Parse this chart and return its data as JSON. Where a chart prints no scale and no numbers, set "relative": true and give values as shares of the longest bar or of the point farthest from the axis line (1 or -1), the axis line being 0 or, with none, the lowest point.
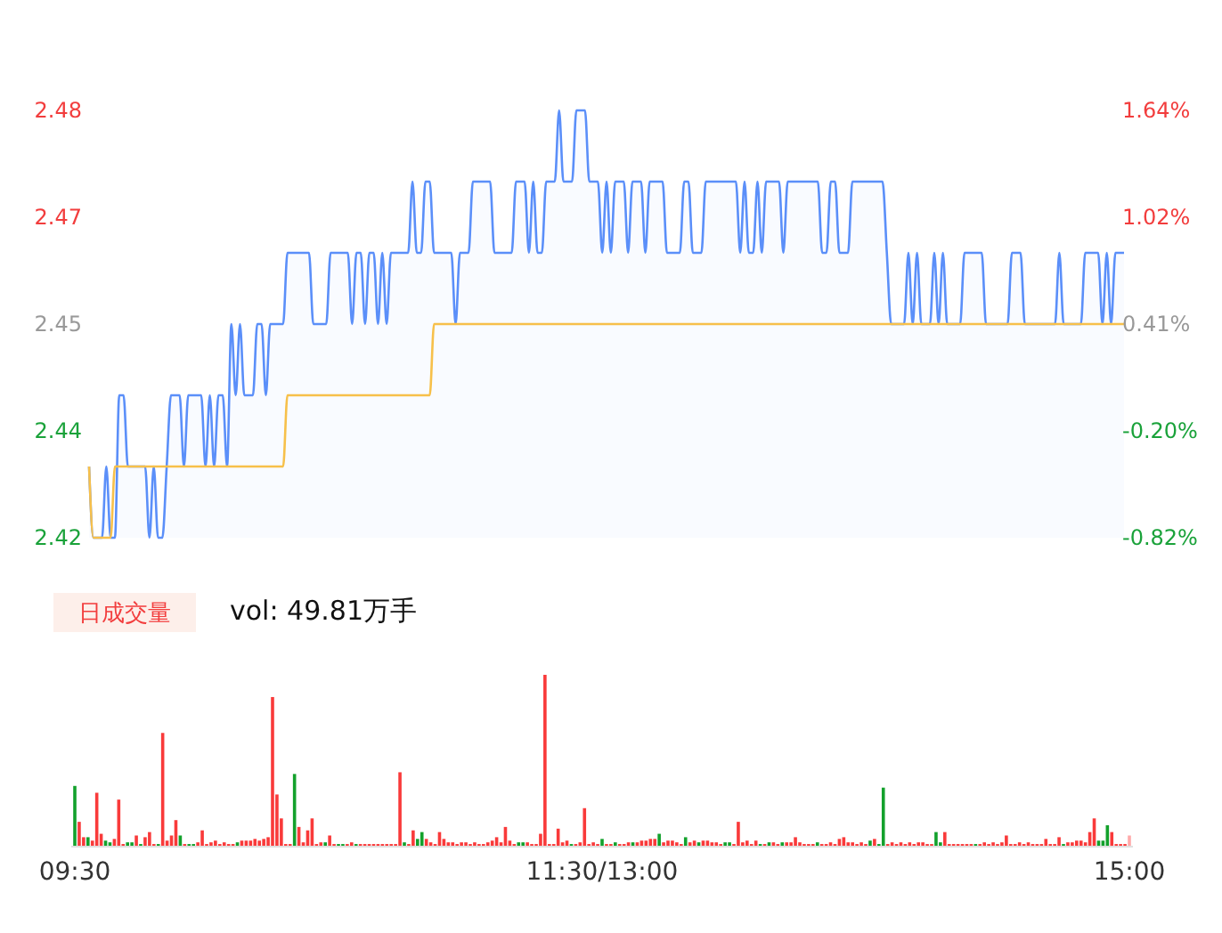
{
  "chart_data": [
    {
      "type": "line",
      "categories": [
        null,
        null,
        null,
        null,
        null,
        null,
        null,
        null,
        null,
        null,
        null,
        null,
        null,
        null,
        null,
        null,
        null,
        null,
        null,
        null,
        null,
        null,
        null,
        null,
        null,
        null,
        null,
        null,
        null,
        null,
        null,
        null,
        null,
        null,
        null,
        null,
        null,
        null,
        null,
        null,
        null,
        null,
        null,
        null,
        null,
        null,
        null,
        null,
        null,
        null,
        null,
        null,
        null,
        null,
        null,
        null,
        null,
        null,
        null,
        null,
        null,
        null,
        null,
        null,
        null,
        null,
        null,
        null,
        null,
        null,
        null,
        null,
        null,
        null,
        null,
        null,
        null,
        null,
        null,
        null,
        null,
        null,
        null,
        null,
        null,
        null,
        null,
        null,
        null,
        null,
        null,
        null,
        null,
        null,
        null,
        null,
        null,
        null,
        null,
        null,
        null,
        null,
        null,
        null,
        null,
        null,
        null,
        null,
        null,
        null,
        null,
        null,
        null,
        null,
        null,
        null,
        null,
        null,
        null,
        null,
        null,
        null,
        null,
        null,
        null,
        null,
        null,
        null,
        null,
        null,
        null,
        null,
        null,
        null,
        null,
        null,
        null,
        null,
        null,
        null,
        null,
        null,
        null,
        null,
        null,
        null,
        null,
        null,
        null,
        null,
        null,
        null,
        null,
        null,
        null,
        null,
        null,
        null,
        null,
        null,
        null,
        null,
        null,
        null,
        null,
        null,
        null,
        null,
        null,
        null,
        null,
        null,
        null,
        null,
        null,
        null,
        null,
        null,
        null,
        null,
        null,
        null,
        null,
        null,
        null,
        null,
        null,
        null,
        null,
        null,
        null,
        null,
        null,
        null,
        null,
        null,
        null,
        null,
        null,
        null,
        null,
        null,
        null,
        null,
        null,
        null,
        null,
        null,
        null,
        null,
        null,
        null,
        null,
        null,
        null,
        null,
        null,
        null,
        null,
        null,
        null,
        null,
        null,
        null,
        null,
        null,
        null,
        null,
        null,
        null,
        null,
        null,
        null,
        null,
        null,
        null,
        null,
        null,
        null,
        null,
        null
      ],
      "ylim": [
        2.42,
        2.48
      ],
      "yticks": [
        2.42,
        {
          "value": 2.435,
          "label": "2.44"
        },
        2.45,
        {
          "value": 2.465,
          "label": "2.47"
        },
        2.48
      ],
      "y2lim": [
        -0.82,
        1.64
      ],
      "y2ticks": [
        {
          "value": -0.82,
          "label": "-0.82%"
        },
        {
          "value": -0.205,
          "label": "-0.20%"
        },
        {
          "value": 0.41,
          "label": "0.41%"
        },
        {
          "value": 1.025,
          "label": "1.02%"
        },
        {
          "value": 1.64,
          "label": "1.64%"
        }
      ],
      "tick_labels": "y",
      "series": [
        {
          "type": "area",
          "color": "#5b8ff9",
          "values": [
            2.43,
            2.42,
            2.42,
            2.42,
            2.43,
            2.42,
            2.42,
            2.44,
            2.44,
            2.43,
            2.43,
            2.43,
            2.43,
            2.43,
            2.42,
            2.43,
            2.42,
            2.42,
            2.43,
            2.44,
            2.44,
            2.44,
            2.43,
            2.44,
            2.44,
            2.44,
            2.44,
            2.43,
            2.44,
            2.43,
            2.44,
            2.44,
            2.43,
            2.45,
            2.44,
            2.45,
            2.44,
            2.44,
            2.44,
            2.45,
            2.45,
            2.44,
            2.45,
            2.45,
            2.45,
            2.45,
            2.46,
            2.46,
            2.46,
            2.46,
            2.46,
            2.46,
            2.45,
            2.45,
            2.45,
            2.45,
            2.46,
            2.46,
            2.46,
            2.46,
            2.46,
            2.45,
            2.46,
            2.46,
            2.45,
            2.46,
            2.46,
            2.45,
            2.46,
            2.45,
            2.46,
            2.46,
            2.46,
            2.46,
            2.46,
            2.47,
            2.46,
            2.46,
            2.47,
            2.47,
            2.46,
            2.46,
            2.46,
            2.46,
            2.46,
            2.45,
            2.46,
            2.46,
            2.46,
            2.47,
            2.47,
            2.47,
            2.47,
            2.47,
            2.46,
            2.46,
            2.46,
            2.46,
            2.46,
            2.47,
            2.47,
            2.47,
            2.46,
            2.47,
            2.46,
            2.46,
            2.47,
            2.47,
            2.47,
            2.48,
            2.47,
            2.47,
            2.47,
            2.48,
            2.48,
            2.48,
            2.47,
            2.47,
            2.47,
            2.46,
            2.47,
            2.46,
            2.47,
            2.47,
            2.47,
            2.46,
            2.47,
            2.47,
            2.47,
            2.46,
            2.47,
            2.47,
            2.47,
            2.47,
            2.46,
            2.46,
            2.46,
            2.46,
            2.47,
            2.47,
            2.46,
            2.46,
            2.46,
            2.47,
            2.47,
            2.47,
            2.47,
            2.47,
            2.47,
            2.47,
            2.47,
            2.46,
            2.47,
            2.46,
            2.46,
            2.47,
            2.46,
            2.47,
            2.47,
            2.47,
            2.47,
            2.46,
            2.47,
            2.47,
            2.47,
            2.47,
            2.47,
            2.47,
            2.47,
            2.47,
            2.46,
            2.46,
            2.47,
            2.47,
            2.46,
            2.46,
            2.46,
            2.47,
            2.47,
            2.47,
            2.47,
            2.47,
            2.47,
            2.47,
            2.47,
            2.46,
            2.45,
            2.45,
            2.45,
            2.45,
            2.46,
            2.45,
            2.46,
            2.45,
            2.45,
            2.45,
            2.46,
            2.45,
            2.46,
            2.45,
            2.45,
            2.45,
            2.45,
            2.46,
            2.46,
            2.46,
            2.46,
            2.46,
            2.45,
            2.45,
            2.45,
            2.45,
            2.45,
            2.45,
            2.46,
            2.46,
            2.46,
            2.45,
            2.45,
            2.45,
            2.45,
            2.45,
            2.45,
            2.45,
            2.45,
            2.46,
            2.45,
            2.45,
            2.45,
            2.45,
            2.45,
            2.46,
            2.46,
            2.46,
            2.46,
            2.45,
            2.46,
            2.45,
            2.46,
            2.46,
            2.46
          ]
        },
        {
          "type": "line",
          "color": "#f7c04a",
          "values": [
            2.43,
            2.42,
            2.42,
            2.42,
            2.42,
            2.42,
            2.43,
            2.43,
            2.43,
            2.43,
            2.43,
            2.43,
            2.43,
            2.43,
            2.43,
            2.43,
            2.43,
            2.43,
            2.43,
            2.43,
            2.43,
            2.43,
            2.43,
            2.43,
            2.43,
            2.43,
            2.43,
            2.43,
            2.43,
            2.43,
            2.43,
            2.43,
            2.43,
            2.43,
            2.43,
            2.43,
            2.43,
            2.43,
            2.43,
            2.43,
            2.43,
            2.43,
            2.43,
            2.43,
            2.43,
            2.43,
            2.44,
            2.44,
            2.44,
            2.44,
            2.44,
            2.44,
            2.44,
            2.44,
            2.44,
            2.44,
            2.44,
            2.44,
            2.44,
            2.44,
            2.44,
            2.44,
            2.44,
            2.44,
            2.44,
            2.44,
            2.44,
            2.44,
            2.44,
            2.44,
            2.44,
            2.44,
            2.44,
            2.44,
            2.44,
            2.44,
            2.44,
            2.44,
            2.44,
            2.44,
            2.45,
            2.45,
            2.45,
            2.45,
            2.45,
            2.45,
            2.45,
            2.45,
            2.45,
            2.45,
            2.45,
            2.45,
            2.45,
            2.45,
            2.45,
            2.45,
            2.45,
            2.45,
            2.45,
            2.45,
            2.45,
            2.45,
            2.45,
            2.45,
            2.45,
            2.45,
            2.45,
            2.45,
            2.45,
            2.45,
            2.45,
            2.45,
            2.45,
            2.45,
            2.45,
            2.45,
            2.45,
            2.45,
            2.45,
            2.45,
            2.45,
            2.45,
            2.45,
            2.45,
            2.45,
            2.45,
            2.45,
            2.45,
            2.45,
            2.45,
            2.45,
            2.45,
            2.45,
            2.45,
            2.45,
            2.45,
            2.45,
            2.45,
            2.45,
            2.45,
            2.45,
            2.45,
            2.45,
            2.45,
            2.45,
            2.45,
            2.45,
            2.45,
            2.45,
            2.45,
            2.45,
            2.45,
            2.45,
            2.45,
            2.45,
            2.45,
            2.45,
            2.45,
            2.45,
            2.45,
            2.45,
            2.45,
            2.45,
            2.45,
            2.45,
            2.45,
            2.45,
            2.45,
            2.45,
            2.45,
            2.45,
            2.45,
            2.45,
            2.45,
            2.45,
            2.45,
            2.45,
            2.45,
            2.45,
            2.45,
            2.45,
            2.45,
            2.45,
            2.45,
            2.45,
            2.45,
            2.45,
            2.45,
            2.45,
            2.45,
            2.45,
            2.45,
            2.45,
            2.45,
            2.45,
            2.45,
            2.45,
            2.45,
            2.45,
            2.45,
            2.45,
            2.45,
            2.45,
            2.45,
            2.45,
            2.45,
            2.45,
            2.45,
            2.45,
            2.45,
            2.45,
            2.45,
            2.45,
            2.45,
            2.45,
            2.45,
            2.45,
            2.45,
            2.45,
            2.45,
            2.45,
            2.45,
            2.45,
            2.45,
            2.45,
            2.45,
            2.45,
            2.45,
            2.45,
            2.45,
            2.45,
            2.45,
            2.45,
            2.45,
            2.45,
            2.45,
            2.45,
            2.45,
            2.45,
            2.45,
            2.45
          ]
        }
      ]
    },
    {
      "type": "bar",
      "title": "日成交量",
      "subtitle": "vol: 49.81万手",
      "relative": true,
      "categories": [
        "09:30",
        null,
        null,
        null,
        null,
        null,
        null,
        null,
        null,
        null,
        null,
        null,
        null,
        null,
        null,
        null,
        null,
        null,
        null,
        null,
        null,
        null,
        null,
        null,
        null,
        null,
        null,
        null,
        null,
        null,
        null,
        null,
        null,
        null,
        null,
        null,
        null,
        null,
        null,
        null,
        null,
        null,
        null,
        null,
        null,
        null,
        null,
        null,
        null,
        null,
        null,
        null,
        null,
        null,
        null,
        null,
        null,
        null,
        null,
        null,
        null,
        null,
        null,
        null,
        null,
        null,
        null,
        null,
        null,
        null,
        null,
        null,
        null,
        null,
        null,
        null,
        null,
        null,
        null,
        null,
        null,
        null,
        null,
        null,
        null,
        null,
        null,
        null,
        null,
        null,
        null,
        null,
        null,
        null,
        null,
        null,
        null,
        null,
        null,
        null,
        null,
        null,
        null,
        null,
        null,
        null,
        null,
        null,
        null,
        null,
        null,
        null,
        null,
        null,
        null,
        null,
        null,
        null,
        null,
        null,
        "11:30/13:00",
        null,
        null,
        null,
        null,
        null,
        null,
        null,
        null,
        null,
        null,
        null,
        null,
        null,
        null,
        null,
        null,
        null,
        null,
        null,
        null,
        null,
        null,
        null,
        null,
        null,
        null,
        null,
        null,
        null,
        null,
        null,
        null,
        null,
        null,
        null,
        null,
        null,
        null,
        null,
        null,
        null,
        null,
        null,
        null,
        null,
        null,
        null,
        null,
        null,
        null,
        null,
        null,
        null,
        null,
        null,
        null,
        null,
        null,
        null,
        null,
        null,
        null,
        null,
        null,
        null,
        null,
        null,
        null,
        null,
        null,
        null,
        null,
        null,
        null,
        null,
        null,
        null,
        null,
        null,
        null,
        null,
        null,
        null,
        null,
        null,
        null,
        null,
        null,
        null,
        null,
        null,
        null,
        null,
        null,
        null,
        null,
        null,
        null,
        null,
        null,
        null,
        null,
        null,
        null,
        null,
        null,
        null,
        null,
        null,
        null,
        null,
        null,
        null,
        null,
        null,
        null,
        null,
        null,
        null,
        "15:00"
      ],
      "values": [
        0.35,
        0.14,
        0.05,
        0.05,
        0.03,
        0.31,
        0.07,
        0.03,
        0.02,
        0.04,
        0.27,
        0.01,
        0.02,
        0.02,
        0.06,
        0.01,
        0.05,
        0.08,
        0.01,
        0.01,
        0.66,
        0.03,
        0.06,
        0.15,
        0.06,
        0.01,
        0.01,
        0.01,
        0.02,
        0.09,
        0.01,
        0.02,
        0.03,
        0.01,
        0.02,
        0.01,
        0.01,
        0.02,
        0.03,
        0.03,
        0.03,
        0.04,
        0.03,
        0.04,
        0.05,
        0.87,
        0.3,
        0.16,
        0.01,
        0.01,
        0.42,
        0.11,
        0.02,
        0.09,
        0.16,
        0.01,
        0.02,
        0.02,
        0.06,
        0.01,
        0.01,
        0.01,
        0.01,
        0.02,
        0.01,
        0.01,
        0.01,
        0.01,
        0.01,
        0.01,
        0.01,
        0.01,
        0.01,
        0.01,
        0.43,
        0.02,
        0.01,
        0.09,
        0.04,
        0.08,
        0.04,
        0.02,
        0.01,
        0.08,
        0.04,
        0.02,
        0.02,
        0.01,
        0.02,
        0.02,
        0.01,
        0.02,
        0.01,
        0.01,
        0.02,
        0.03,
        0.05,
        0.02,
        0.11,
        0.03,
        0.01,
        0.02,
        0.02,
        0.02,
        0.01,
        0.01,
        0.07,
        1,
        0.01,
        0.01,
        0.1,
        0.02,
        0.03,
        0.01,
        0.01,
        0.02,
        0.22,
        0.01,
        0.02,
        0.01,
        0.04,
        0.01,
        0.01,
        0.02,
        0.01,
        0.01,
        0.02,
        0.02,
        0.02,
        0.03,
        0.03,
        0.04,
        0.04,
        0.07,
        0.02,
        0.03,
        0.03,
        0.02,
        0.01,
        0.05,
        0.02,
        0.03,
        0.02,
        0.03,
        0.03,
        0.02,
        0.02,
        0.01,
        0.02,
        0.02,
        0.01,
        0.14,
        0.02,
        0.03,
        0.01,
        0.03,
        0.01,
        0.01,
        0.02,
        0.02,
        0.01,
        0.02,
        0.02,
        0.02,
        0.05,
        0.02,
        0.01,
        0.01,
        0.01,
        0.02,
        0.01,
        0.01,
        0.02,
        0.01,
        0.04,
        0.05,
        0.02,
        0.02,
        0.01,
        0.02,
        0.01,
        0.03,
        0.04,
        0.01,
        0.34,
        0.01,
        0.02,
        0.01,
        0.02,
        0.01,
        0.02,
        0.01,
        0.02,
        0.02,
        0.01,
        0.01,
        0.08,
        0.02,
        0.08,
        0.01,
        0.01,
        0.01,
        0.01,
        0.01,
        0.01,
        0.01,
        0.01,
        0.02,
        0.01,
        0.02,
        0.01,
        0.02,
        0.06,
        0.01,
        0.01,
        0.02,
        0.01,
        0.02,
        0.01,
        0.01,
        0.01,
        0.04,
        0.01,
        0.01,
        0.05,
        0.01,
        0.02,
        0.02,
        0.03,
        0.03,
        0.02,
        0.08,
        0.16,
        0.03,
        0.03,
        0.12,
        0.08,
        0.01,
        0.01,
        0.01,
        0.06
      ],
      "colors": [
        "#13a12c",
        "#f93a3a",
        "#f93a3a",
        "#13a12c",
        "#f93a3a",
        "#f93a3a",
        "#f93a3a",
        "#13a12c",
        "#13a12c",
        "#f93a3a",
        "#f93a3a",
        "#f93a3a",
        "#13a12c",
        "#13a12c",
        "#f93a3a",
        "#13a12c",
        "#f93a3a",
        "#f93a3a",
        "#f93a3a",
        "#13a12c",
        "#f93a3a",
        "#f93a3a",
        "#f93a3a",
        "#f93a3a",
        "#13a12c",
        "#f93a3a",
        "#13a12c",
        "#13a12c",
        "#f93a3a",
        "#f93a3a",
        "#f93a3a",
        "#f93a3a",
        "#f93a3a",
        "#f93a3a",
        "#f93a3a",
        "#f93a3a",
        "#f93a3a",
        "#13a12c",
        "#f93a3a",
        "#f93a3a",
        "#f93a3a",
        "#f93a3a",
        "#f93a3a",
        "#f93a3a",
        "#f93a3a",
        "#f93a3a",
        "#f93a3a",
        "#f93a3a",
        "#f93a3a",
        "#f93a3a",
        "#13a12c",
        "#f93a3a",
        "#f93a3a",
        "#f93a3a",
        "#f93a3a",
        "#f93a3a",
        "#f93a3a",
        "#13a12c",
        "#f93a3a",
        "#f93a3a",
        "#13a12c",
        "#13a12c",
        "#f93a3a",
        "#f93a3a",
        "#13a12c",
        "#f93a3a",
        "#f93a3a",
        "#f93a3a",
        "#f93a3a",
        "#f93a3a",
        "#f93a3a",
        "#f93a3a",
        "#f93a3a",
        "#f93a3a",
        "#f93a3a",
        "#13a12c",
        "#f93a3a",
        "#f93a3a",
        "#13a12c",
        "#13a12c",
        "#f93a3a",
        "#f93a3a",
        "#f93a3a",
        "#f93a3a",
        "#f93a3a",
        "#f93a3a",
        "#f93a3a",
        "#f93a3a",
        "#f93a3a",
        "#f93a3a",
        "#f93a3a",
        "#f93a3a",
        "#f93a3a",
        "#f93a3a",
        "#f93a3a",
        "#f93a3a",
        "#f93a3a",
        "#f93a3a",
        "#f93a3a",
        "#f93a3a",
        "#f93a3a",
        "#13a12c",
        "#13a12c",
        "#f93a3a",
        "#f93a3a",
        "#f93a3a",
        "#f93a3a",
        "#f93a3a",
        "#f93a3a",
        "#f93a3a",
        "#f93a3a",
        "#f93a3a",
        "#f93a3a",
        "#13a12c",
        "#f93a3a",
        "#f93a3a",
        "#f93a3a",
        "#f93a3a",
        "#f93a3a",
        "#f93a3a",
        "#13a12c",
        "#f93a3a",
        "#f93a3a",
        "#13a12c",
        "#f93a3a",
        "#f93a3a",
        "#f93a3a",
        "#13a12c",
        "#f93a3a",
        "#f93a3a",
        "#f93a3a",
        "#f93a3a",
        "#f93a3a",
        "#13a12c",
        "#f93a3a",
        "#f93a3a",
        "#f93a3a",
        "#f93a3a",
        "#f93a3a",
        "#13a12c",
        "#f93a3a",
        "#f93a3a",
        "#13a12c",
        "#f93a3a",
        "#f93a3a",
        "#f93a3a",
        "#f93a3a",
        "#f93a3a",
        "#13a12c",
        "#13a12c",
        "#f93a3a",
        "#f93a3a",
        "#f93a3a",
        "#f93a3a",
        "#f93a3a",
        "#f93a3a",
        "#13a12c",
        "#f93a3a",
        "#13a12c",
        "#f93a3a",
        "#f93a3a",
        "#13a12c",
        "#f93a3a",
        "#f93a3a",
        "#f93a3a",
        "#f93a3a",
        "#f93a3a",
        "#f93a3a",
        "#f93a3a",
        "#13a12c",
        "#f93a3a",
        "#f93a3a",
        "#f93a3a",
        "#f93a3a",
        "#f93a3a",
        "#f93a3a",
        "#f93a3a",
        "#f93a3a",
        "#f93a3a",
        "#f93a3a",
        "#f93a3a",
        "#13a12c",
        "#f93a3a",
        "#13a12c",
        "#13a12c",
        "#f93a3a",
        "#f93a3a",
        "#f93a3a",
        "#f93a3a",
        "#f93a3a",
        "#f93a3a",
        "#f93a3a",
        "#f93a3a",
        "#f93a3a",
        "#f93a3a",
        "#f93a3a",
        "#13a12c",
        "#13a12c",
        "#f93a3a",
        "#f93a3a",
        "#f93a3a",
        "#f93a3a",
        "#f93a3a",
        "#f93a3a",
        "#f93a3a",
        "#13a12c",
        "#f93a3a",
        "#f93a3a",
        "#f93a3a",
        "#f93a3a",
        "#f93a3a",
        "#f93a3a",
        "#f93a3a",
        "#f93a3a",
        "#f93a3a",
        "#f93a3a",
        "#f93a3a",
        "#f93a3a",
        "#f93a3a",
        "#f93a3a",
        "#f93a3a",
        "#f93a3a",
        "#f93a3a",
        "#f93a3a",
        "#f93a3a",
        "#13a12c",
        "#f93a3a",
        "#f93a3a",
        "#f93a3a",
        "#f93a3a",
        "#f93a3a",
        "#f93a3a",
        "#f93a3a",
        "#13a12c",
        "#13a12c",
        "#13a12c",
        "#f93a3a",
        "#f93a3a",
        "#f93a3a",
        "#f93a3a",
        "#ffaaaa"
      ]
    }
  ]
}
